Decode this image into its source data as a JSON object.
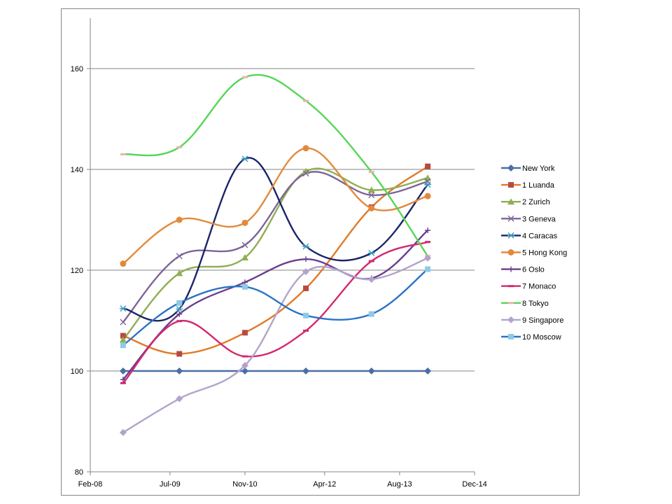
{
  "chart_data": {
    "type": "line",
    "smooth": true,
    "x_ticks": [
      "Feb-08",
      "Jul-09",
      "Nov-10",
      "Apr-12",
      "Aug-13",
      "Dec-14"
    ],
    "x_tick_months": [
      0,
      17,
      33,
      50,
      66,
      82
    ],
    "x_months": [
      7,
      19,
      33,
      46,
      60,
      72
    ],
    "y_ticks": [
      "80",
      "100",
      "120",
      "140",
      "160"
    ],
    "ylim": [
      80,
      170
    ],
    "grid": "horizontal",
    "legend": "right",
    "series": [
      {
        "name": "New York",
        "color": "#4a6fa5",
        "marker": "diamond",
        "values": [
          100,
          100,
          100,
          100,
          100,
          100
        ]
      },
      {
        "name": "1 Luanda",
        "color": "#e07b2a",
        "marker": "square",
        "marker_color": "#b84a42",
        "values": [
          107,
          103.4,
          107.6,
          116.4,
          132.5,
          140.6
        ]
      },
      {
        "name": "2 Zurich",
        "color": "#8fae52",
        "marker": "triangle",
        "values": [
          106.2,
          119.4,
          122.5,
          139.6,
          135.9,
          138.3
        ]
      },
      {
        "name": "3 Geneva",
        "color": "#7c6597",
        "marker": "x",
        "values": [
          109.7,
          122.8,
          125,
          139.2,
          134.9,
          137.6
        ]
      },
      {
        "name": "4 Caracas",
        "color": "#1a2466",
        "marker": "star",
        "marker_color": "#3a9bc0",
        "values": [
          112.4,
          112.3,
          142.1,
          124.7,
          123.4,
          137
        ]
      },
      {
        "name": "5 Hong Kong",
        "color": "#e28a3b",
        "marker": "circle",
        "values": [
          121.3,
          130,
          129.4,
          144.2,
          132.3,
          134.7
        ]
      },
      {
        "name": "6 Oslo",
        "color": "#6a3d8f",
        "marker": "plus",
        "values": [
          98.3,
          111.3,
          117.6,
          122.2,
          118.4,
          127.9
        ]
      },
      {
        "name": "7 Monaco",
        "color": "#d4286f",
        "marker": "dash",
        "values": [
          97.6,
          109.9,
          102.9,
          108,
          121.8,
          125.6
        ]
      },
      {
        "name": "8 Tokyo",
        "color": "#55d655",
        "marker": "dash",
        "marker_color": "#f0b0b0",
        "values": [
          143,
          144.4,
          158.3,
          153.6,
          139.5,
          122.8
        ]
      },
      {
        "name": "9 Singapore",
        "color": "#b3a3cc",
        "marker": "diamond",
        "values": [
          87.8,
          94.5,
          101.1,
          119.7,
          118.2,
          122.4
        ]
      },
      {
        "name": "10 Moscow",
        "color": "#2a73c6",
        "marker": "square",
        "marker_color": "#8ecae6",
        "values": [
          105.1,
          113.5,
          116.7,
          111,
          111.3,
          120.2
        ]
      }
    ]
  }
}
